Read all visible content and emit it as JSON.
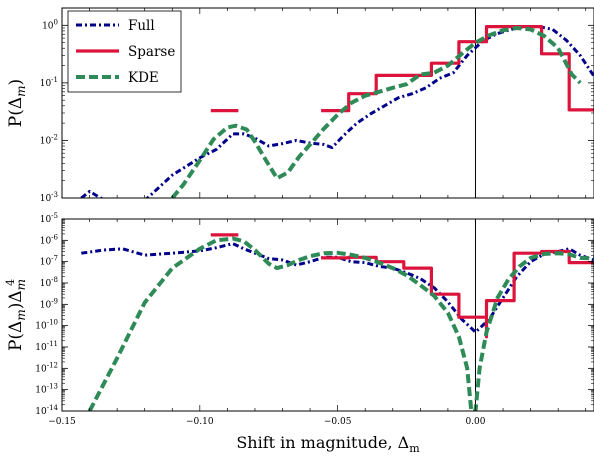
{
  "chart_data": [
    {
      "type": "line",
      "ylabel": "P(Δm)",
      "yscale": "log",
      "ylim": [
        0.001,
        2
      ],
      "xlim": [
        -0.15,
        0.043
      ],
      "yticks": [
        {
          "v": 0.001,
          "base": "10",
          "exp": "-3"
        },
        {
          "v": 0.01,
          "base": "10",
          "exp": "-2"
        },
        {
          "v": 0.1,
          "base": "10",
          "exp": "-1"
        },
        {
          "v": 1,
          "base": "10",
          "exp": "0"
        }
      ],
      "vline": 0.0,
      "legend": {
        "placement": "top-left",
        "entries": [
          {
            "label": "Full",
            "color": "#00008b",
            "style": "dashdot"
          },
          {
            "label": "Sparse",
            "color": "#dc143c",
            "style": "solid"
          },
          {
            "label": "KDE",
            "color": "#2e8b57",
            "style": "dashed"
          }
        ]
      },
      "series": [
        {
          "name": "Full",
          "color": "#00008b",
          "style": "dashdot",
          "points": [
            [
              -0.143,
              0.001
            ],
            [
              -0.14,
              0.0013
            ],
            [
              -0.136,
              0.001
            ],
            [
              -0.13,
              0.0007
            ],
            [
              -0.12,
              0.0009
            ],
            [
              -0.11,
              0.0025
            ],
            [
              -0.1,
              0.005
            ],
            [
              -0.094,
              0.007
            ],
            [
              -0.088,
              0.013
            ],
            [
              -0.084,
              0.013
            ],
            [
              -0.08,
              0.011
            ],
            [
              -0.075,
              0.008
            ],
            [
              -0.07,
              0.0088
            ],
            [
              -0.065,
              0.01
            ],
            [
              -0.06,
              0.009
            ],
            [
              -0.055,
              0.0085
            ],
            [
              -0.052,
              0.0075
            ],
            [
              -0.048,
              0.012
            ],
            [
              -0.043,
              0.02
            ],
            [
              -0.038,
              0.029
            ],
            [
              -0.033,
              0.04
            ],
            [
              -0.028,
              0.055
            ],
            [
              -0.023,
              0.065
            ],
            [
              -0.018,
              0.082
            ],
            [
              -0.013,
              0.12
            ],
            [
              -0.008,
              0.15
            ],
            [
              -0.003,
              0.3
            ],
            [
              0.003,
              0.55
            ],
            [
              0.008,
              0.72
            ],
            [
              0.013,
              0.85
            ],
            [
              0.018,
              0.95
            ],
            [
              0.023,
              0.95
            ],
            [
              0.028,
              0.85
            ],
            [
              0.033,
              0.55
            ],
            [
              0.038,
              0.3
            ],
            [
              0.043,
              0.13
            ]
          ]
        },
        {
          "name": "Sparse",
          "color": "#dc143c",
          "style": "solid",
          "segments": [
            [
              [
                -0.096,
                0.033
              ],
              [
                -0.086,
                0.033
              ]
            ],
            [
              [
                -0.056,
                0.033
              ],
              [
                -0.046,
                0.033
              ],
              [
                -0.046,
                0.065
              ],
              [
                -0.036,
                0.065
              ],
              [
                -0.036,
                0.135
              ],
              [
                -0.016,
                0.135
              ],
              [
                -0.016,
                0.22
              ],
              [
                -0.006,
                0.22
              ],
              [
                -0.006,
                0.52
              ],
              [
                0.004,
                0.52
              ],
              [
                0.004,
                0.95
              ],
              [
                0.024,
                0.95
              ],
              [
                0.024,
                0.32
              ],
              [
                0.034,
                0.32
              ],
              [
                0.034,
                0.034
              ],
              [
                0.043,
                0.034
              ]
            ]
          ]
        },
        {
          "name": "KDE",
          "color": "#2e8b57",
          "style": "dashed",
          "points": [
            [
              -0.11,
              0.001
            ],
            [
              -0.106,
              0.0017
            ],
            [
              -0.1,
              0.0045
            ],
            [
              -0.095,
              0.0105
            ],
            [
              -0.09,
              0.0168
            ],
            [
              -0.087,
              0.018
            ],
            [
              -0.083,
              0.0155
            ],
            [
              -0.08,
              0.0095
            ],
            [
              -0.076,
              0.0045
            ],
            [
              -0.072,
              0.0022
            ],
            [
              -0.068,
              0.0028
            ],
            [
              -0.064,
              0.0052
            ],
            [
              -0.06,
              0.0085
            ],
            [
              -0.055,
              0.016
            ],
            [
              -0.05,
              0.028
            ],
            [
              -0.045,
              0.045
            ],
            [
              -0.04,
              0.06
            ],
            [
              -0.035,
              0.07
            ],
            [
              -0.03,
              0.082
            ],
            [
              -0.025,
              0.095
            ],
            [
              -0.02,
              0.14
            ],
            [
              -0.015,
              0.15
            ],
            [
              -0.01,
              0.2
            ],
            [
              -0.005,
              0.32
            ],
            [
              0.0,
              0.5
            ],
            [
              0.005,
              0.67
            ],
            [
              0.01,
              0.82
            ],
            [
              0.015,
              0.9
            ],
            [
              0.02,
              0.85
            ],
            [
              0.025,
              0.65
            ],
            [
              0.03,
              0.4
            ],
            [
              0.035,
              0.14
            ],
            [
              0.038,
              0.1
            ]
          ]
        }
      ]
    },
    {
      "type": "line",
      "ylabel": "P(Δm)Δm⁴",
      "xlabel": "Shift in magnitude, Δm",
      "yscale": "log",
      "ylim": [
        1e-14,
        1e-05
      ],
      "xlim": [
        -0.15,
        0.043
      ],
      "xticks": [
        {
          "v": -0.15,
          "label": "−0.15"
        },
        {
          "v": -0.1,
          "label": "−0.10"
        },
        {
          "v": -0.05,
          "label": "−0.05"
        },
        {
          "v": 0.0,
          "label": "0.00"
        }
      ],
      "yticks": [
        {
          "v": 1e-14,
          "base": "10",
          "exp": "-14"
        },
        {
          "v": 1e-13,
          "base": "10",
          "exp": "-13"
        },
        {
          "v": 1e-12,
          "base": "10",
          "exp": "-12"
        },
        {
          "v": 1e-11,
          "base": "10",
          "exp": "-11"
        },
        {
          "v": 1e-10,
          "base": "10",
          "exp": "-10"
        },
        {
          "v": 1e-09,
          "base": "10",
          "exp": "-9"
        },
        {
          "v": 1e-08,
          "base": "10",
          "exp": "-8"
        },
        {
          "v": 1e-07,
          "base": "10",
          "exp": "-7"
        },
        {
          "v": 1e-06,
          "base": "10",
          "exp": "-6"
        },
        {
          "v": 1e-05,
          "base": "10",
          "exp": "-5"
        }
      ],
      "vline": 0.0,
      "series": [
        {
          "name": "Full",
          "color": "#00008b",
          "style": "dashdot",
          "points": [
            [
              -0.143,
              2.5e-07
            ],
            [
              -0.135,
              3.5e-07
            ],
            [
              -0.128,
              4e-07
            ],
            [
              -0.12,
              2e-07
            ],
            [
              -0.11,
              2.5e-07
            ],
            [
              -0.1,
              3.2e-07
            ],
            [
              -0.094,
              4.5e-07
            ],
            [
              -0.088,
              7e-07
            ],
            [
              -0.084,
              4e-07
            ],
            [
              -0.08,
              2.5e-07
            ],
            [
              -0.075,
              1.4e-07
            ],
            [
              -0.07,
              1.2e-07
            ],
            [
              -0.065,
              7e-08
            ],
            [
              -0.06,
              1e-07
            ],
            [
              -0.055,
              1.6e-07
            ],
            [
              -0.05,
              1.6e-07
            ],
            [
              -0.045,
              1e-07
            ],
            [
              -0.04,
              9e-08
            ],
            [
              -0.035,
              6e-08
            ],
            [
              -0.03,
              5e-08
            ],
            [
              -0.025,
              3e-08
            ],
            [
              -0.02,
              1.6e-08
            ],
            [
              -0.015,
              6e-09
            ],
            [
              -0.01,
              1.3e-09
            ],
            [
              -0.005,
              2e-10
            ],
            [
              0.0,
              5e-11
            ],
            [
              0.005,
              2e-10
            ],
            [
              0.01,
              2e-09
            ],
            [
              0.015,
              2e-08
            ],
            [
              0.02,
              1e-07
            ],
            [
              0.025,
              2.3e-07
            ],
            [
              0.03,
              3e-07
            ],
            [
              0.034,
              4e-07
            ],
            [
              0.038,
              2e-07
            ],
            [
              0.043,
              1.2e-07
            ]
          ]
        },
        {
          "name": "Sparse",
          "color": "#dc143c",
          "style": "solid",
          "segments": [
            [
              [
                -0.096,
                1.8e-06
              ],
              [
                -0.086,
                1.8e-06
              ]
            ],
            [
              [
                -0.056,
                1.5e-07
              ],
              [
                -0.046,
                1.5e-07
              ],
              [
                -0.046,
                1.6e-07
              ],
              [
                -0.036,
                1.6e-07
              ],
              [
                -0.036,
                1e-07
              ],
              [
                -0.026,
                1e-07
              ],
              [
                -0.026,
                5e-08
              ],
              [
                -0.016,
                5e-08
              ],
              [
                -0.016,
                3e-09
              ],
              [
                -0.006,
                3e-09
              ],
              [
                -0.006,
                2.5e-10
              ],
              [
                0.004,
                2.5e-10
              ],
              [
                0.004,
                3e-11
              ],
              [
                0.004,
                1.5e-09
              ],
              [
                0.014,
                1.5e-09
              ],
              [
                0.014,
                2.5e-07
              ],
              [
                0.024,
                2.5e-07
              ],
              [
                0.024,
                3e-07
              ],
              [
                0.034,
                3e-07
              ],
              [
                0.034,
                9e-08
              ],
              [
                0.043,
                9e-08
              ]
            ]
          ]
        },
        {
          "name": "KDE",
          "color": "#2e8b57",
          "style": "dashed",
          "points": [
            [
              -0.14,
              1e-14
            ],
            [
              -0.13,
              3e-12
            ],
            [
              -0.12,
              1.2e-09
            ],
            [
              -0.11,
              5e-08
            ],
            [
              -0.1,
              4e-07
            ],
            [
              -0.094,
              1e-06
            ],
            [
              -0.088,
              1.2e-06
            ],
            [
              -0.084,
              9e-07
            ],
            [
              -0.08,
              3.5e-07
            ],
            [
              -0.075,
              8e-08
            ],
            [
              -0.072,
              5e-08
            ],
            [
              -0.068,
              7e-08
            ],
            [
              -0.064,
              1.2e-07
            ],
            [
              -0.06,
              1.8e-07
            ],
            [
              -0.055,
              2.5e-07
            ],
            [
              -0.05,
              2.6e-07
            ],
            [
              -0.045,
              2.1e-07
            ],
            [
              -0.04,
              1.5e-07
            ],
            [
              -0.035,
              9e-08
            ],
            [
              -0.03,
              5e-08
            ],
            [
              -0.025,
              2.3e-08
            ],
            [
              -0.02,
              8e-09
            ],
            [
              -0.015,
              2.5e-09
            ],
            [
              -0.01,
              4e-10
            ],
            [
              -0.006,
              3e-11
            ],
            [
              -0.003,
              1e-12
            ],
            [
              -0.0015,
              1e-14
            ],
            [
              0.0,
              1e-14
            ],
            [
              0.0015,
              1e-12
            ],
            [
              0.004,
              5e-11
            ],
            [
              0.008,
              2e-09
            ],
            [
              0.012,
              1.5e-08
            ],
            [
              0.016,
              6e-08
            ],
            [
              0.02,
              1.5e-07
            ],
            [
              0.025,
              2.3e-07
            ],
            [
              0.03,
              2.5e-07
            ],
            [
              0.034,
              2.2e-07
            ],
            [
              0.038,
              1.5e-07
            ],
            [
              0.043,
              1.4e-07
            ]
          ]
        }
      ]
    }
  ]
}
